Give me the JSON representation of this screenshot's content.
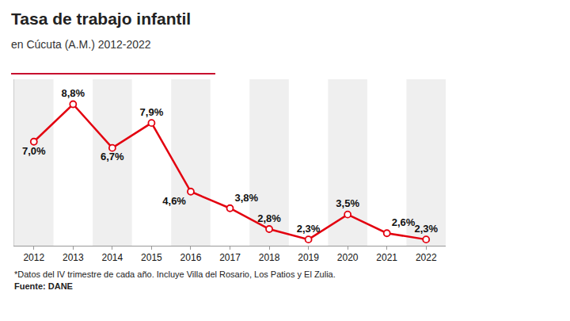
{
  "chart_data": {
    "type": "line",
    "title": "Tasa de trabajo infantil",
    "subtitle": "en Cúcuta (A.M.) 2012-2022",
    "categories": [
      "2012",
      "2013",
      "2014",
      "2015",
      "2016",
      "2017",
      "2018",
      "2019",
      "2020",
      "2021",
      "2022"
    ],
    "values": [
      7.0,
      8.8,
      6.7,
      7.9,
      4.6,
      3.8,
      2.8,
      2.3,
      3.5,
      2.6,
      2.3
    ],
    "value_labels": [
      "7,0%",
      "8,8%",
      "6,7%",
      "7,9%",
      "4,6%",
      "3,8%",
      "2,8%",
      "2,3%",
      "3,5%",
      "2,6%",
      "2,3%"
    ],
    "color": "#e3000f",
    "marker": "circle",
    "data_labels": true,
    "tick_labels": "x",
    "ylim": [
      2,
      10
    ],
    "yticks": [],
    "note": "*Datos del IV trimestre de cada año. Incluye Villa del Rosario, Los Patios y El Zulia.",
    "source": "Fuente: DANE"
  }
}
